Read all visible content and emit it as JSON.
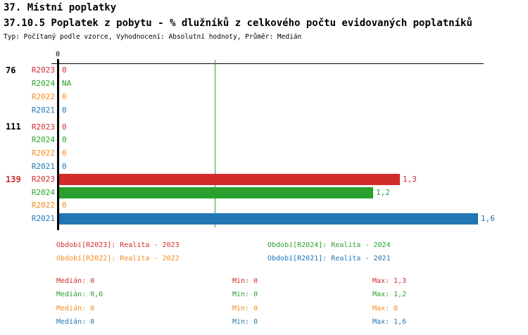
{
  "header": {
    "title1": "37. Místní poplatky",
    "title2": "37.10.5 Poplatek z pobytu - % dlužníků z celkového počtu evidovaných poplatníků",
    "subtitle": "Typ: Počítaný podle vzorce, Vyhodnocení: Absolutní hodnoty, Průměr: Medián"
  },
  "colors": {
    "r2023": "#D22B2B",
    "r2024": "#2AA12E",
    "r2022": "#F68B1F",
    "r2021": "#2176B4",
    "axis": "#000000",
    "group_highlight": "#D22B2B",
    "refline": "#2AA12E"
  },
  "chart_data": {
    "type": "bar",
    "orientation": "horizontal",
    "title": "",
    "xlabel": "",
    "ylabel": "",
    "xlim": [
      0,
      1.62
    ],
    "x_axis_tick": "0",
    "reference_line_x": 0.6,
    "grid": false,
    "series_order": [
      "R2023",
      "R2024",
      "R2022",
      "R2021"
    ],
    "groups": [
      {
        "label": "76",
        "rows": [
          {
            "period": "R2023",
            "value": 0,
            "display": "0"
          },
          {
            "period": "R2024",
            "value": null,
            "display": "NA"
          },
          {
            "period": "R2022",
            "value": 0,
            "display": "0"
          },
          {
            "period": "R2021",
            "value": 0,
            "display": "0"
          }
        ]
      },
      {
        "label": "111",
        "rows": [
          {
            "period": "R2023",
            "value": 0,
            "display": "0"
          },
          {
            "period": "R2024",
            "value": 0,
            "display": "0"
          },
          {
            "period": "R2022",
            "value": 0,
            "display": "0"
          },
          {
            "period": "R2021",
            "value": 0,
            "display": "0"
          }
        ]
      },
      {
        "label": "139",
        "rows": [
          {
            "period": "R2023",
            "value": 1.3,
            "display": "1,3"
          },
          {
            "period": "R2024",
            "value": 1.2,
            "display": "1,2"
          },
          {
            "period": "R2022",
            "value": 0,
            "display": "0"
          },
          {
            "period": "R2021",
            "value": 1.6,
            "display": "1,6"
          }
        ]
      }
    ]
  },
  "legend": {
    "items": [
      {
        "label": "Období[R2023]: Realita - 2023"
      },
      {
        "label": "Období[R2024]: Realita - 2024"
      },
      {
        "label": "Období[R2022]: Realita - 2022"
      },
      {
        "label": "Období[R2021]: Realita - 2021"
      }
    ]
  },
  "stats": {
    "rows": [
      {
        "median": "Medián: 0",
        "min": "Min: 0",
        "max": "Max: 1,3"
      },
      {
        "median": "Medián: 0,6",
        "min": "Min: 0",
        "max": "Max: 1,2"
      },
      {
        "median": "Medián: 0",
        "min": "Min: 0",
        "max": "Max: 0"
      },
      {
        "median": "Medián: 0",
        "min": "Min: 0",
        "max": "Max: 1,6"
      }
    ]
  }
}
